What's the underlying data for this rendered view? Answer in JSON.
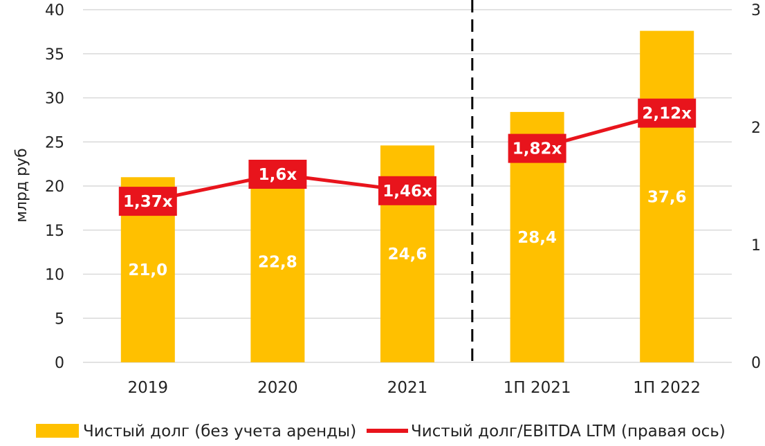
{
  "chart_data": {
    "type": "bar",
    "categories": [
      "2019",
      "2020",
      "2021",
      "1П 2021",
      "1П 2022"
    ],
    "series": [
      {
        "name": "Чистый долг (без учета аренды)",
        "type": "bar",
        "axis": "left",
        "values": [
          21.0,
          22.8,
          24.6,
          28.4,
          37.6
        ],
        "labels": [
          "21,0",
          "22,8",
          "24,6",
          "28,4",
          "37,6"
        ]
      },
      {
        "name": "Чистый долг/EBITDA LTM (правая ось)",
        "type": "line",
        "axis": "right",
        "values": [
          1.37,
          1.6,
          1.46,
          1.82,
          2.12
        ],
        "labels": [
          "1,37x",
          "1,6x",
          "1,46x",
          "1,82x",
          "2,12x"
        ]
      }
    ],
    "ylabel": "млрд руб",
    "ylim": [
      0,
      40
    ],
    "y_ticks": [
      "0",
      "5",
      "10",
      "15",
      "20",
      "25",
      "30",
      "35",
      "40"
    ],
    "y2lim": [
      0,
      3
    ],
    "y2_ticks": [
      "0",
      "1",
      "2",
      "3"
    ],
    "separator_after_category": "2021",
    "grid": true,
    "legend": "bottom",
    "colors": {
      "bar": "#FFC000",
      "line": "#E8141C",
      "label_box": "#E8141C",
      "grid": "#d9d9d9"
    }
  }
}
